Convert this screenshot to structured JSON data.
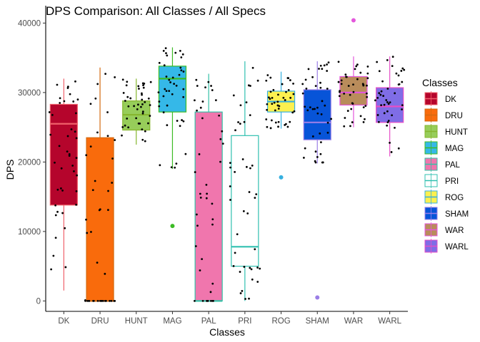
{
  "chart_data": {
    "type": "boxplot",
    "title": "DPS Comparison: All Classes / All Specs",
    "xlabel": "Classes",
    "ylabel": "DPS",
    "ylim": [
      -1500,
      42500
    ],
    "yticks": [
      0,
      10000,
      20000,
      30000,
      40000
    ],
    "yticklabels": [
      "0",
      "10000",
      "20000",
      "30000",
      "40000"
    ],
    "grid": false,
    "legend": {
      "title": "Classes",
      "placement": "right"
    },
    "categories": [
      "DK",
      "DRU",
      "HUNT",
      "MAG",
      "PAL",
      "PRI",
      "ROG",
      "SHAM",
      "WAR",
      "WARL"
    ],
    "boxes": [
      {
        "name": "DK",
        "fill": "#b5052c",
        "line": "#f0606a",
        "min": 1500,
        "q1": 13800,
        "median": 25500,
        "q3": 28300,
        "max": 32000,
        "outliers": []
      },
      {
        "name": "DRU",
        "fill": "#f96b0c",
        "line": "#d46a10",
        "min": 0,
        "q1": 0,
        "median": 0,
        "q3": 23500,
        "max": 33600,
        "outliers": []
      },
      {
        "name": "HUNT",
        "fill": "#97cd5a",
        "line": "#86b62e",
        "min": 22500,
        "q1": 24600,
        "median": 26800,
        "q3": 28800,
        "max": 32000,
        "outliers": []
      },
      {
        "name": "MAG",
        "fill": "#35b8e8",
        "line": "#3cbb25",
        "min": 19000,
        "q1": 27200,
        "median": 32000,
        "q3": 33800,
        "max": 36500,
        "outliers": [
          10800
        ]
      },
      {
        "name": "PAL",
        "fill": "#f076ad",
        "line": "#34c1a6",
        "min": 0,
        "q1": 0,
        "median": 0,
        "q3": 27200,
        "max": 32700,
        "outliers": []
      },
      {
        "name": "PRI",
        "fill": "#ffffff",
        "line": "#30c0b0",
        "min": 0,
        "q1": 5000,
        "median": 7800,
        "q3": 23800,
        "max": 34500,
        "outliers": []
      },
      {
        "name": "ROG",
        "fill": "#fdf04f",
        "line": "#37b0e0",
        "min": 24800,
        "q1": 27200,
        "median": 28700,
        "q3": 30200,
        "max": 33000,
        "outliers": [
          17800
        ]
      },
      {
        "name": "SHAM",
        "fill": "#0754d8",
        "line": "#9b7ee6",
        "min": 19800,
        "q1": 23200,
        "median": 25700,
        "q3": 30400,
        "max": 34500,
        "outliers": [
          500
        ]
      },
      {
        "name": "WAR",
        "fill": "#b98c5b",
        "line": "#e457dc",
        "min": 25000,
        "q1": 28200,
        "median": 30000,
        "q3": 32300,
        "max": 35200,
        "outliers": [
          40400
        ]
      },
      {
        "name": "WARL",
        "fill": "#7f6de6",
        "line": "#e64fc7",
        "min": 20800,
        "q1": 25700,
        "median": 28000,
        "q3": 30700,
        "max": 35200,
        "outliers": []
      }
    ]
  }
}
